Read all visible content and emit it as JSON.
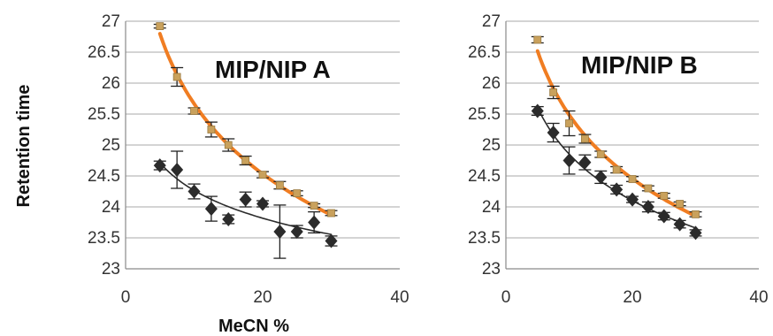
{
  "chart_data": [
    {
      "type": "scatter",
      "title": "MIP/NIP A",
      "xlabel": "MeCN %",
      "ylabel": "Retention  time",
      "xlim": [
        0,
        40
      ],
      "ylim": [
        23,
        27
      ],
      "xticks": [
        "0",
        "20",
        "40"
      ],
      "yticks": [
        "23",
        "23.5",
        "24",
        "24.5",
        "25",
        "25.5",
        "26",
        "26.5",
        "27"
      ],
      "grid": true,
      "x": [
        5,
        7.5,
        10,
        12.5,
        15,
        17.5,
        20,
        22.5,
        25,
        27.5,
        30
      ],
      "series": [
        {
          "marker": "square",
          "color": "#c9a15c",
          "fit_color": "#f07d22",
          "values": [
            26.92,
            26.1,
            25.55,
            25.25,
            25.0,
            24.75,
            24.52,
            24.35,
            24.22,
            24.02,
            23.9
          ],
          "errors": [
            0.03,
            0.15,
            0.05,
            0.12,
            0.1,
            0.07,
            0.05,
            0.06,
            0.04,
            0.03,
            0.04
          ]
        },
        {
          "marker": "diamond",
          "color": "#2b2b2b",
          "fit_color": "#2b2b2b",
          "values": [
            24.67,
            24.6,
            24.25,
            23.97,
            23.8,
            24.12,
            24.05,
            23.6,
            23.6,
            23.75,
            23.45
          ],
          "errors": [
            0.07,
            0.3,
            0.12,
            0.2,
            0.07,
            0.12,
            0.05,
            0.43,
            0.1,
            0.17,
            0.08
          ]
        }
      ]
    },
    {
      "type": "scatter",
      "title": "MIP/NIP B",
      "xlabel": "",
      "ylabel": "",
      "xlim": [
        0,
        40
      ],
      "ylim": [
        23,
        27
      ],
      "xticks": [
        "0",
        "20",
        "40"
      ],
      "yticks": [
        "23",
        "23.5",
        "24",
        "24.5",
        "25",
        "25.5",
        "26",
        "26.5",
        "27"
      ],
      "grid": true,
      "x": [
        5,
        7.5,
        10,
        12.5,
        15,
        17.5,
        20,
        22.5,
        25,
        27.5,
        30
      ],
      "series": [
        {
          "marker": "square",
          "color": "#c9a15c",
          "fit_color": "#f07d22",
          "values": [
            26.7,
            25.85,
            25.35,
            25.1,
            24.85,
            24.6,
            24.45,
            24.3,
            24.18,
            24.05,
            23.88
          ],
          "errors": [
            0.05,
            0.1,
            0.2,
            0.07,
            0.05,
            0.05,
            0.04,
            0.04,
            0.04,
            0.03,
            0.04
          ]
        },
        {
          "marker": "diamond",
          "color": "#2b2b2b",
          "fit_color": "#2b2b2b",
          "values": [
            25.55,
            25.2,
            24.75,
            24.72,
            24.48,
            24.28,
            24.12,
            24.0,
            23.85,
            23.72,
            23.58
          ],
          "errors": [
            0.07,
            0.15,
            0.22,
            0.12,
            0.1,
            0.07,
            0.05,
            0.08,
            0.06,
            0.06,
            0.05
          ]
        }
      ]
    }
  ]
}
